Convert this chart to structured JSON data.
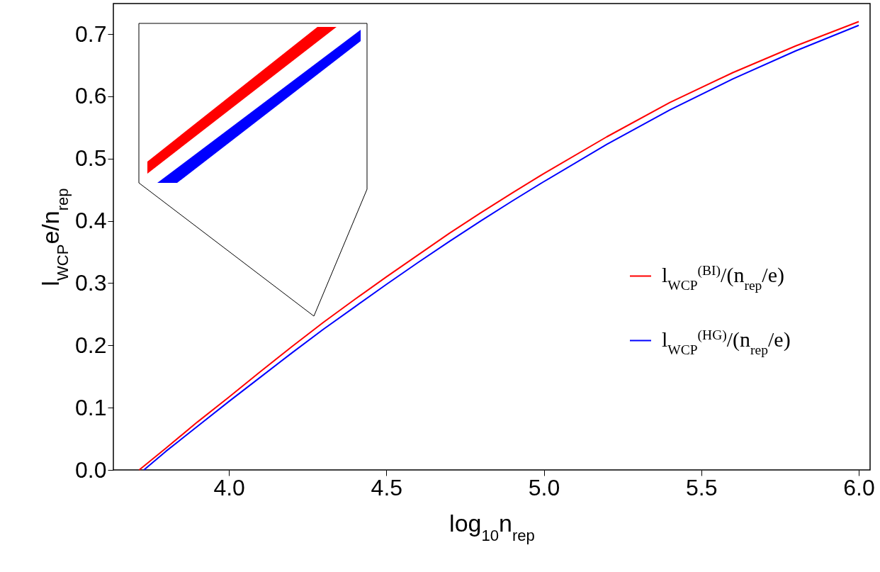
{
  "chart_data": {
    "type": "line",
    "xlabel": "log$_{10}$n$_{rep}$",
    "ylabel": "l$_{WCP}$e/n$_{rep}$",
    "xlim": [
      3.633,
      6.036
    ],
    "ylim": [
      0,
      0.749
    ],
    "xticks": [
      {
        "value": 4,
        "label": "4.0"
      },
      {
        "value": 4.5,
        "label": "4.5"
      },
      {
        "value": 5,
        "label": "5.0"
      },
      {
        "value": 5.5,
        "label": "5.5"
      },
      {
        "value": 6,
        "label": "6.0"
      }
    ],
    "yticks": [
      {
        "value": 0,
        "label": "0.0"
      },
      0.1,
      0.2,
      0.3,
      0.4,
      0.5,
      0.6,
      0.7
    ],
    "grid": false,
    "legend": "right",
    "series": [
      {
        "name": "l$_{WCP}$$^{(BI)}$/(n$_{rep}$/e)",
        "color": "#ff0000",
        "x": [
          3.715,
          3.8,
          3.9,
          4.0,
          4.1,
          4.2,
          4.3,
          4.4,
          4.5,
          4.6,
          4.7,
          4.8,
          4.9,
          5.0,
          5.2,
          5.4,
          5.6,
          5.8,
          6.0
        ],
        "values": [
          0,
          0.035,
          0.077,
          0.117,
          0.158,
          0.198,
          0.237,
          0.274,
          0.31,
          0.345,
          0.38,
          0.413,
          0.445,
          0.476,
          0.535,
          0.59,
          0.638,
          0.681,
          0.72
        ]
      },
      {
        "name": "l$_{WCP}$$^{(HG)}$/(n$_{rep}$/e)",
        "color": "#0000ff",
        "x": [
          3.73,
          3.8,
          3.9,
          4.0,
          4.1,
          4.2,
          4.3,
          4.4,
          4.5,
          4.6,
          4.7,
          4.8,
          4.9,
          5.0,
          5.2,
          5.4,
          5.6,
          5.8,
          6.0
        ],
        "values": [
          0,
          0.03,
          0.07,
          0.11,
          0.149,
          0.188,
          0.226,
          0.262,
          0.298,
          0.333,
          0.367,
          0.4,
          0.432,
          0.463,
          0.523,
          0.578,
          0.628,
          0.673,
          0.714
        ]
      }
    ]
  }
}
